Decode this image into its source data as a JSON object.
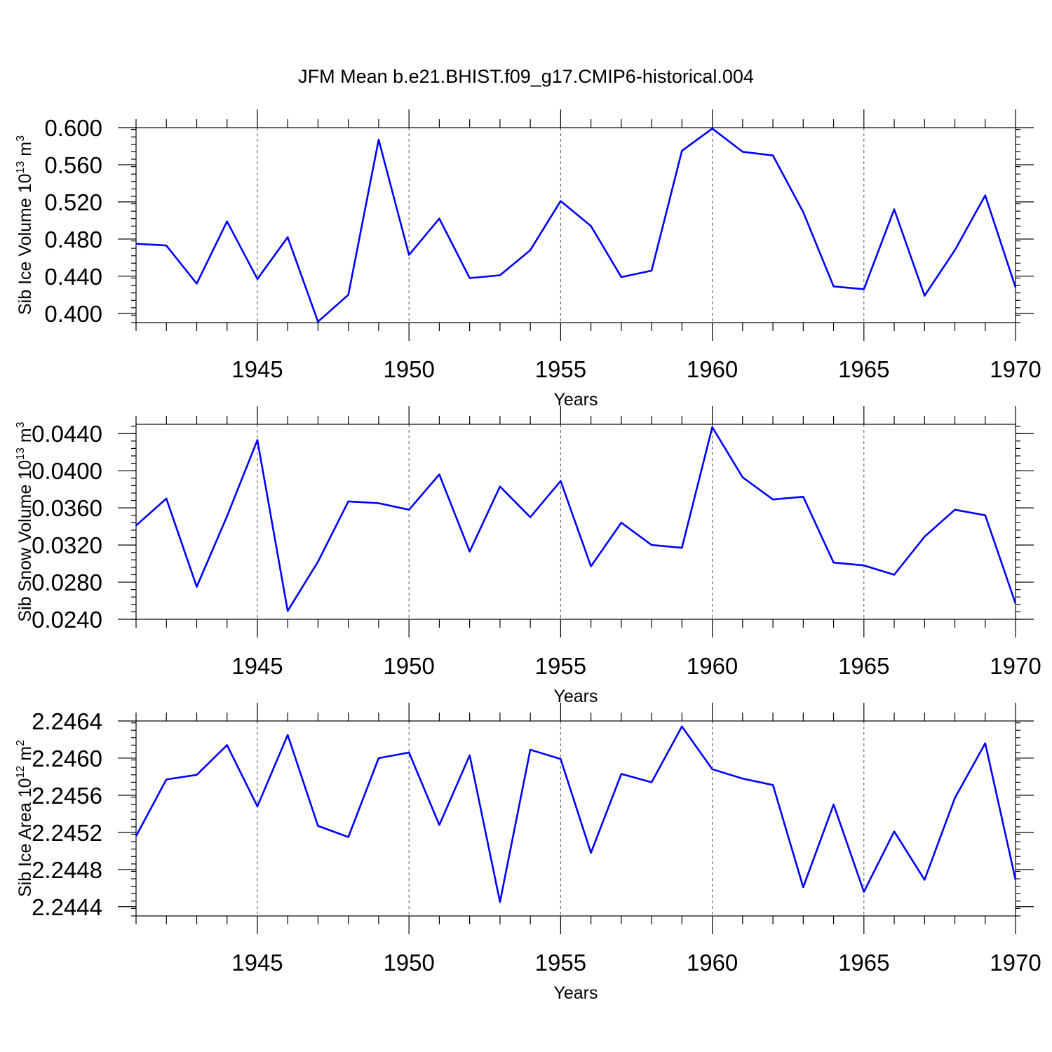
{
  "title": "JFM Mean b.e21.BHIST.f09_g17.CMIP6-historical.004",
  "chart_data": [
    {
      "type": "line",
      "ylabel": "Sib Ice Volume 10",
      "ylabel_exp": "13",
      "ylabel_unit": "m",
      "ylabel_unit_exp": "3",
      "xlabel": "Years",
      "xlim": [
        1941,
        1970
      ],
      "ylim": [
        0.39,
        0.6
      ],
      "xticks": [
        1945,
        1950,
        1955,
        1960,
        1965,
        1970
      ],
      "xtick_labels": [
        "1945",
        "1950",
        "1955",
        "1960",
        "1965",
        "1970"
      ],
      "yticks": [
        0.4,
        0.44,
        0.48,
        0.52,
        0.56,
        0.6
      ],
      "ytick_labels": [
        "0.400",
        "0.440",
        "0.480",
        "0.520",
        "0.560",
        "0.600"
      ],
      "yminor_step": 0.008,
      "grid": "dashed vertical at major x ticks",
      "x": [
        1941,
        1942,
        1943,
        1944,
        1945,
        1946,
        1947,
        1948,
        1949,
        1950,
        1951,
        1952,
        1953,
        1954,
        1955,
        1956,
        1957,
        1958,
        1959,
        1960,
        1961,
        1962,
        1963,
        1964,
        1965,
        1966,
        1967,
        1968,
        1969,
        1970
      ],
      "values": [
        0.475,
        0.473,
        0.432,
        0.499,
        0.437,
        0.482,
        0.391,
        0.42,
        0.587,
        0.463,
        0.502,
        0.438,
        0.441,
        0.468,
        0.521,
        0.494,
        0.439,
        0.446,
        0.575,
        0.599,
        0.574,
        0.57,
        0.509,
        0.429,
        0.426,
        0.512,
        0.419,
        0.468,
        0.527,
        0.428
      ]
    },
    {
      "type": "line",
      "ylabel": "Sib Snow Volume 10",
      "ylabel_exp": "13",
      "ylabel_unit": "m",
      "ylabel_unit_exp": "3",
      "xlabel": "Years",
      "xlim": [
        1941,
        1970
      ],
      "ylim": [
        0.024,
        0.045
      ],
      "xticks": [
        1945,
        1950,
        1955,
        1960,
        1965,
        1970
      ],
      "xtick_labels": [
        "1945",
        "1950",
        "1955",
        "1960",
        "1965",
        "1970"
      ],
      "yticks": [
        0.024,
        0.028,
        0.032,
        0.036,
        0.04,
        0.044
      ],
      "ytick_labels": [
        "0.0240",
        "0.0280",
        "0.0320",
        "0.0360",
        "0.0400",
        "0.0440"
      ],
      "yminor_step": 0.0008,
      "grid": "dashed vertical at major x ticks",
      "x": [
        1941,
        1942,
        1943,
        1944,
        1945,
        1946,
        1947,
        1948,
        1949,
        1950,
        1951,
        1952,
        1953,
        1954,
        1955,
        1956,
        1957,
        1958,
        1959,
        1960,
        1961,
        1962,
        1963,
        1964,
        1965,
        1966,
        1967,
        1968,
        1969,
        1970
      ],
      "values": [
        0.0341,
        0.037,
        0.0275,
        0.0351,
        0.0433,
        0.0249,
        0.0302,
        0.0367,
        0.0365,
        0.0358,
        0.0396,
        0.0313,
        0.0383,
        0.035,
        0.0389,
        0.0297,
        0.0344,
        0.032,
        0.0317,
        0.0447,
        0.0393,
        0.0369,
        0.0372,
        0.0301,
        0.0298,
        0.0288,
        0.0329,
        0.0358,
        0.0352,
        0.0257
      ]
    },
    {
      "type": "line",
      "ylabel": "Sib Ice Area 10",
      "ylabel_exp": "12",
      "ylabel_unit": "m",
      "ylabel_unit_exp": "2",
      "xlabel": "Years",
      "xlim": [
        1941,
        1970
      ],
      "ylim": [
        2.2443,
        2.2464
      ],
      "xticks": [
        1945,
        1950,
        1955,
        1960,
        1965,
        1970
      ],
      "xtick_labels": [
        "1945",
        "1950",
        "1955",
        "1960",
        "1965",
        "1970"
      ],
      "yticks": [
        2.2444,
        2.2448,
        2.2452,
        2.2456,
        2.246,
        2.2464
      ],
      "ytick_labels": [
        "2.2444",
        "2.2448",
        "2.2452",
        "2.2456",
        "2.2460",
        "2.2464"
      ],
      "yminor_step": 8e-05,
      "grid": "dashed vertical at major x ticks",
      "x": [
        1941,
        1942,
        1943,
        1944,
        1945,
        1946,
        1947,
        1948,
        1949,
        1950,
        1951,
        1952,
        1953,
        1954,
        1955,
        1956,
        1957,
        1958,
        1959,
        1960,
        1961,
        1962,
        1963,
        1964,
        1965,
        1966,
        1967,
        1968,
        1969,
        1970
      ],
      "values": [
        2.24516,
        2.24577,
        2.24582,
        2.24614,
        2.24548,
        2.24625,
        2.24527,
        2.24515,
        2.246,
        2.24606,
        2.24528,
        2.24603,
        2.24445,
        2.24609,
        2.24599,
        2.24498,
        2.24583,
        2.24574,
        2.24634,
        2.24588,
        2.24578,
        2.24571,
        2.24461,
        2.2455,
        2.24456,
        2.24521,
        2.24469,
        2.24557,
        2.24616,
        2.24469
      ]
    }
  ]
}
